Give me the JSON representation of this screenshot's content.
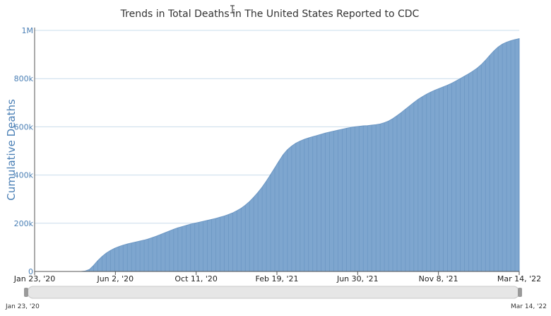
{
  "chart_data": {
    "type": "area",
    "title": "Trends in Total Deaths in The United States Reported to CDC",
    "ylabel": "Cumulative Deaths",
    "xlabel": "",
    "ylim": [
      0,
      1000000
    ],
    "y_ticks": [
      {
        "value": 0,
        "label": "0"
      },
      {
        "value": 200000,
        "label": "200k"
      },
      {
        "value": 400000,
        "label": "400k"
      },
      {
        "value": 600000,
        "label": "600k"
      },
      {
        "value": 800000,
        "label": "800k"
      },
      {
        "value": 1000000,
        "label": "1M"
      }
    ],
    "x_ticks": [
      "Jan 23, '20",
      "Jun 2, '20",
      "Oct 11, '20",
      "Feb 19, '21",
      "Jun 30, '21",
      "Nov 8, '21",
      "Mar 14, '22"
    ],
    "grid": true,
    "color": "#7ea6cf",
    "series": [
      {
        "values": [
          0,
          0,
          0,
          0,
          0,
          0,
          0,
          0,
          0,
          0,
          0,
          0,
          2000,
          8000,
          25000,
          45000,
          62000,
          76000,
          87000,
          96000,
          103000,
          109000,
          114000,
          118000,
          122000,
          126000,
          130000,
          135000,
          141000,
          147000,
          154000,
          161000,
          168000,
          175000,
          181000,
          186000,
          191000,
          196000,
          200000,
          204000,
          208000,
          212000,
          216000,
          220000,
          225000,
          230000,
          236000,
          243000,
          252000,
          262000,
          275000,
          290000,
          308000,
          328000,
          350000,
          375000,
          402000,
          430000,
          458000,
          485000,
          505000,
          520000,
          532000,
          541000,
          548000,
          554000,
          559000,
          564000,
          569000,
          574000,
          578000,
          582000,
          586000,
          590000,
          594000,
          597000,
          600000,
          602000,
          604000,
          605000,
          607000,
          609000,
          612000,
          617000,
          624000,
          634000,
          646000,
          659000,
          673000,
          687000,
          701000,
          714000,
          725000,
          735000,
          744000,
          752000,
          759000,
          766000,
          773000,
          781000,
          790000,
          800000,
          810000,
          820000,
          831000,
          843000,
          858000,
          876000,
          896000,
          915000,
          931000,
          943000,
          951000,
          957000,
          962000,
          966000
        ]
      }
    ]
  },
  "navigator": {
    "start_label": "Jan 23, '20",
    "end_label": "Mar 14, '22",
    "start_fraction": 0,
    "end_fraction": 1
  }
}
